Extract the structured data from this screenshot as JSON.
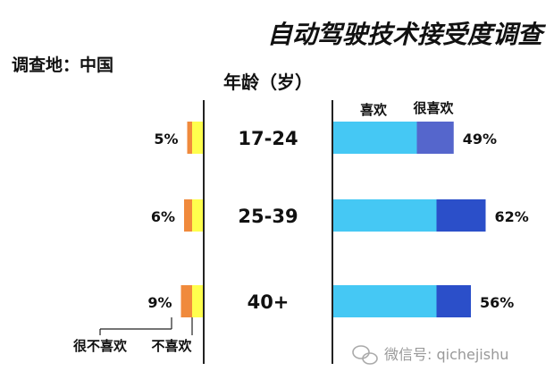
{
  "title": "自动驾驶技术接受度调查",
  "location_label": "调查地：中国",
  "age_header": "年龄（岁）",
  "watermark": "微信号: qichejishu",
  "colors": {
    "dislike": "#f08a3c",
    "strong_dislike_note": "#f08a3c",
    "neutral_yellow": "#ffff4d",
    "like": "#45c8f4",
    "like_much_49": "#5566cc",
    "like_much": "#2b4fc9",
    "axis": "#222222"
  },
  "chart_data": {
    "type": "bar",
    "title": "自动驾驶技术接受度调查",
    "categories": [
      "17-24",
      "25-39",
      "40+"
    ],
    "left_legend": [
      "很不喜欢",
      "不喜欢"
    ],
    "right_legend": [
      "喜欢",
      "很喜欢"
    ],
    "left_series": [
      {
        "name": "很不喜欢",
        "values": [
          1,
          2,
          3
        ]
      },
      {
        "name": "不喜欢",
        "values": [
          4,
          4,
          6
        ]
      }
    ],
    "left_totals": [
      "5%",
      "6%",
      "9%"
    ],
    "right_series": [
      {
        "name": "喜欢",
        "values": [
          34,
          42,
          42
        ]
      },
      {
        "name": "很喜欢",
        "values": [
          15,
          20,
          14
        ]
      }
    ],
    "right_totals": [
      "49%",
      "62%",
      "56%"
    ]
  }
}
